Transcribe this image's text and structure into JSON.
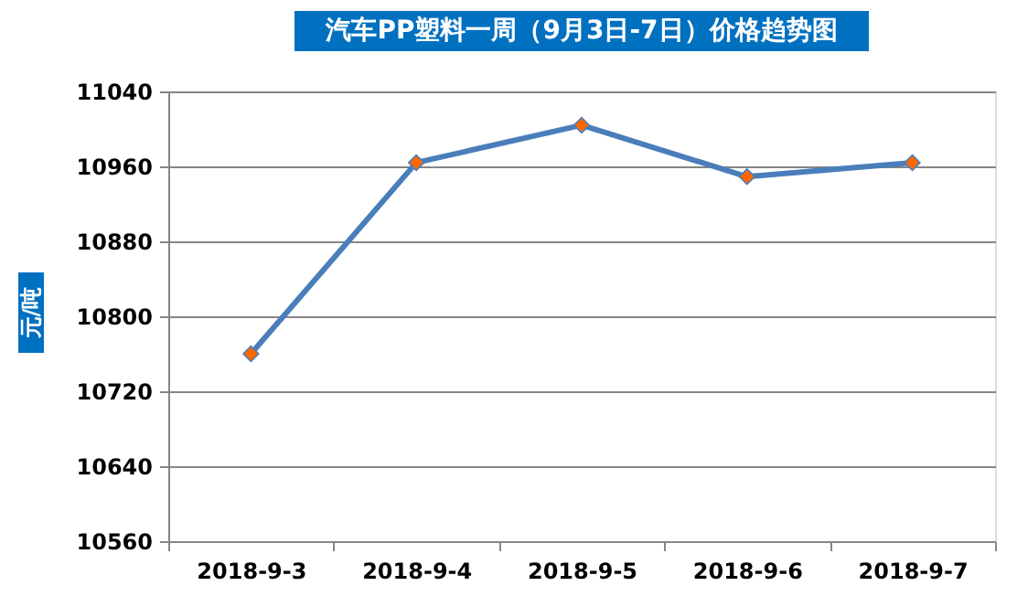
{
  "chart_data": {
    "type": "line",
    "title": "汽车PP塑料一周（9月3日-7日）价格趋势图",
    "ylabel": "元/吨",
    "categories": [
      "2018-9-3",
      "2018-9-4",
      "2018-9-5",
      "2018-9-6",
      "2018-9-7"
    ],
    "series": [
      {
        "color": "#4a7ebb",
        "values": [
          10760,
          10964,
          11004,
          10949,
          10964
        ]
      }
    ],
    "marker": "diamond",
    "ylim": [
      10560,
      11040
    ],
    "yticks": [
      10560,
      10640,
      10720,
      10800,
      10880,
      10960,
      11040
    ],
    "grid": "y"
  }
}
